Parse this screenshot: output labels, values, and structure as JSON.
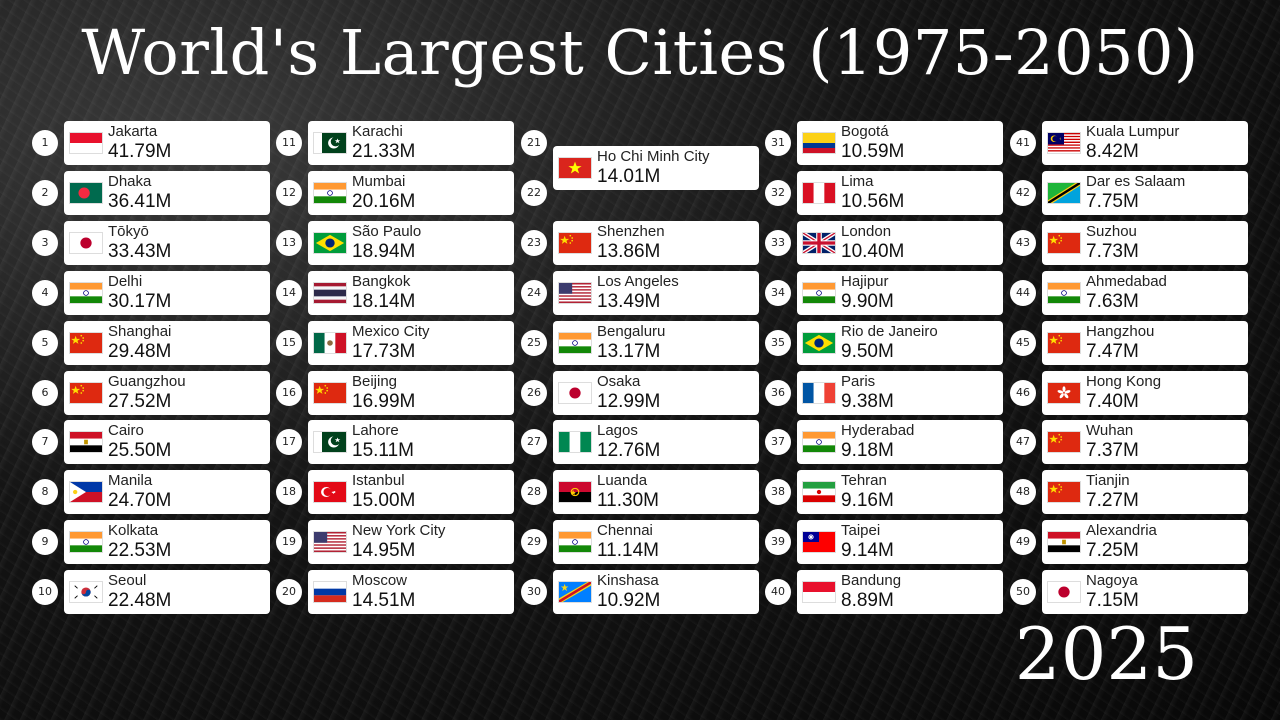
{
  "title": "World's Largest Cities (1975-2050)",
  "year": "2025",
  "cities": [
    {
      "rank": "1",
      "name": "Jakarta",
      "pop": "41.79M",
      "flag": "id"
    },
    {
      "rank": "2",
      "name": "Dhaka",
      "pop": "36.41M",
      "flag": "bd"
    },
    {
      "rank": "3",
      "name": "Tōkyō",
      "pop": "33.43M",
      "flag": "jp"
    },
    {
      "rank": "4",
      "name": "Delhi",
      "pop": "30.17M",
      "flag": "in"
    },
    {
      "rank": "5",
      "name": "Shanghai",
      "pop": "29.48M",
      "flag": "cn"
    },
    {
      "rank": "6",
      "name": "Guangzhou",
      "pop": "27.52M",
      "flag": "cn"
    },
    {
      "rank": "7",
      "name": "Cairo",
      "pop": "25.50M",
      "flag": "eg"
    },
    {
      "rank": "8",
      "name": "Manila",
      "pop": "24.70M",
      "flag": "ph"
    },
    {
      "rank": "9",
      "name": "Kolkata",
      "pop": "22.53M",
      "flag": "in"
    },
    {
      "rank": "10",
      "name": "Seoul",
      "pop": "22.48M",
      "flag": "kr"
    },
    {
      "rank": "11",
      "name": "Karachi",
      "pop": "21.33M",
      "flag": "pk"
    },
    {
      "rank": "12",
      "name": "Mumbai",
      "pop": "20.16M",
      "flag": "in"
    },
    {
      "rank": "13",
      "name": "São Paulo",
      "pop": "18.94M",
      "flag": "br"
    },
    {
      "rank": "14",
      "name": "Bangkok",
      "pop": "18.14M",
      "flag": "th"
    },
    {
      "rank": "15",
      "name": "Mexico City",
      "pop": "17.73M",
      "flag": "mx"
    },
    {
      "rank": "16",
      "name": "Beijing",
      "pop": "16.99M",
      "flag": "cn"
    },
    {
      "rank": "17",
      "name": "Lahore",
      "pop": "15.11M",
      "flag": "pk"
    },
    {
      "rank": "18",
      "name": "Istanbul",
      "pop": "15.00M",
      "flag": "tr"
    },
    {
      "rank": "19",
      "name": "New York City",
      "pop": "14.95M",
      "flag": "us"
    },
    {
      "rank": "20",
      "name": "Moscow",
      "pop": "14.51M",
      "flag": "ru"
    },
    {
      "rank": "21",
      "name": "Ho Chi Minh City",
      "pop": "14.01M",
      "flag": "vn"
    },
    {
      "rank": "22",
      "name": "",
      "pop": "",
      "flag": ""
    },
    {
      "rank": "23",
      "name": "Shenzhen",
      "pop": "13.86M",
      "flag": "cn"
    },
    {
      "rank": "24",
      "name": "Los Angeles",
      "pop": "13.49M",
      "flag": "us"
    },
    {
      "rank": "25",
      "name": "Bengaluru",
      "pop": "13.17M",
      "flag": "in"
    },
    {
      "rank": "26",
      "name": "Osaka",
      "pop": "12.99M",
      "flag": "jp"
    },
    {
      "rank": "27",
      "name": "Lagos",
      "pop": "12.76M",
      "flag": "ng"
    },
    {
      "rank": "28",
      "name": "Luanda",
      "pop": "11.30M",
      "flag": "ao"
    },
    {
      "rank": "29",
      "name": "Chennai",
      "pop": "11.14M",
      "flag": "in"
    },
    {
      "rank": "30",
      "name": "Kinshasa",
      "pop": "10.92M",
      "flag": "cd"
    },
    {
      "rank": "31",
      "name": "Bogotá",
      "pop": "10.59M",
      "flag": "co"
    },
    {
      "rank": "32",
      "name": "Lima",
      "pop": "10.56M",
      "flag": "pe"
    },
    {
      "rank": "33",
      "name": "London",
      "pop": "10.40M",
      "flag": "gb"
    },
    {
      "rank": "34",
      "name": "Hajipur",
      "pop": "9.90M",
      "flag": "in"
    },
    {
      "rank": "35",
      "name": "Rio de Janeiro",
      "pop": "9.50M",
      "flag": "br"
    },
    {
      "rank": "36",
      "name": "Paris",
      "pop": "9.38M",
      "flag": "fr"
    },
    {
      "rank": "37",
      "name": "Hyderabad",
      "pop": "9.18M",
      "flag": "in"
    },
    {
      "rank": "38",
      "name": "Tehran",
      "pop": "9.16M",
      "flag": "ir"
    },
    {
      "rank": "39",
      "name": "Taipei",
      "pop": "9.14M",
      "flag": "tw"
    },
    {
      "rank": "40",
      "name": "Bandung",
      "pop": "8.89M",
      "flag": "id"
    },
    {
      "rank": "41",
      "name": "Kuala Lumpur",
      "pop": "8.42M",
      "flag": "my"
    },
    {
      "rank": "42",
      "name": "Dar es Salaam",
      "pop": "7.75M",
      "flag": "tz"
    },
    {
      "rank": "43",
      "name": "Suzhou",
      "pop": "7.73M",
      "flag": "cn"
    },
    {
      "rank": "44",
      "name": "Ahmedabad",
      "pop": "7.63M",
      "flag": "in"
    },
    {
      "rank": "45",
      "name": "Hangzhou",
      "pop": "7.47M",
      "flag": "cn"
    },
    {
      "rank": "46",
      "name": "Hong Kong",
      "pop": "7.40M",
      "flag": "hk"
    },
    {
      "rank": "47",
      "name": "Wuhan",
      "pop": "7.37M",
      "flag": "cn"
    },
    {
      "rank": "48",
      "name": "Tianjin",
      "pop": "7.27M",
      "flag": "cn"
    },
    {
      "rank": "49",
      "name": "Alexandria",
      "pop": "7.25M",
      "flag": "eg"
    },
    {
      "rank": "50",
      "name": "Nagoya",
      "pop": "7.15M",
      "flag": "jp"
    }
  ]
}
